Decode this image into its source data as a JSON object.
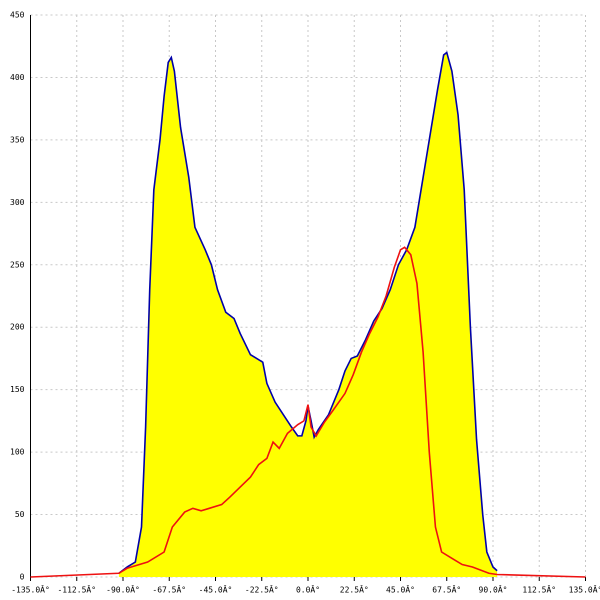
{
  "chart_data": {
    "type": "line",
    "xlim": [
      -135,
      135
    ],
    "ylim": [
      0,
      450
    ],
    "xticks": [
      {
        "value": -135,
        "label": "-135.0Â°"
      },
      {
        "value": -112.5,
        "label": "-112.5Â°"
      },
      {
        "value": -90,
        "label": "-90.0Â°"
      },
      {
        "value": -67.5,
        "label": "-67.5Â°"
      },
      {
        "value": -45,
        "label": "-45.0Â°"
      },
      {
        "value": -22.5,
        "label": "-22.5Â°"
      },
      {
        "value": 0,
        "label": "0.0Â°"
      },
      {
        "value": 22.5,
        "label": "22.5Â°"
      },
      {
        "value": 45,
        "label": "45.0Â°"
      },
      {
        "value": 67.5,
        "label": "67.5Â°"
      },
      {
        "value": 90,
        "label": "90.0Â°"
      },
      {
        "value": 112.5,
        "label": "112.5Â°"
      },
      {
        "value": 135,
        "label": "135.0Â°"
      }
    ],
    "yticks": [
      0,
      50,
      100,
      150,
      200,
      250,
      300,
      350,
      400,
      450
    ],
    "grid": true,
    "series": [
      {
        "color": "#0000aa",
        "fill": "#ffff00",
        "x": [
          -92,
          -88,
          -84,
          -81,
          -79,
          -77,
          -75,
          -72,
          -70,
          -68,
          -66.5,
          -65,
          -62,
          -58,
          -55,
          -50,
          -47,
          -44,
          -40,
          -36,
          -33,
          -28,
          -22,
          -20,
          -16,
          -12,
          -8,
          -5,
          -3,
          -1,
          0,
          1.5,
          3,
          5,
          10,
          15,
          18,
          21,
          24,
          28,
          32,
          36,
          40,
          44,
          48,
          52,
          56,
          60,
          63,
          66,
          67.5,
          70,
          73,
          76,
          79,
          82,
          85,
          87,
          90,
          92
        ],
        "values": [
          3,
          8,
          12,
          40,
          120,
          230,
          310,
          350,
          385,
          412,
          416,
          405,
          360,
          320,
          280,
          262,
          250,
          230,
          212,
          207,
          195,
          178,
          172,
          155,
          140,
          130,
          120,
          113,
          113,
          125,
          137,
          125,
          112,
          118,
          130,
          150,
          165,
          175,
          177,
          190,
          205,
          215,
          230,
          250,
          262,
          280,
          320,
          360,
          390,
          418,
          420,
          405,
          370,
          310,
          200,
          110,
          50,
          20,
          8,
          5
        ]
      },
      {
        "color": "#ee1111",
        "x": [
          -135,
          -92,
          -88,
          -84,
          -78,
          -70,
          -66,
          -60,
          -56,
          -52,
          -48,
          -42,
          -38,
          -33,
          -28,
          -24,
          -20,
          -17,
          -14,
          -10,
          -5,
          -2,
          0,
          1.5,
          4,
          8,
          12,
          18,
          22,
          26,
          30,
          34,
          38,
          42,
          45,
          47,
          50,
          53,
          56,
          59,
          62,
          65,
          70,
          75,
          80,
          88,
          92,
          135
        ],
        "values": [
          0,
          3,
          7,
          9,
          12,
          20,
          40,
          52,
          55,
          53,
          55,
          58,
          64,
          72,
          80,
          90,
          95,
          108,
          103,
          115,
          122,
          125,
          138,
          120,
          113,
          124,
          133,
          147,
          162,
          180,
          195,
          208,
          225,
          248,
          262,
          264,
          258,
          235,
          180,
          100,
          40,
          20,
          15,
          10,
          8,
          3,
          2,
          0
        ]
      }
    ]
  }
}
